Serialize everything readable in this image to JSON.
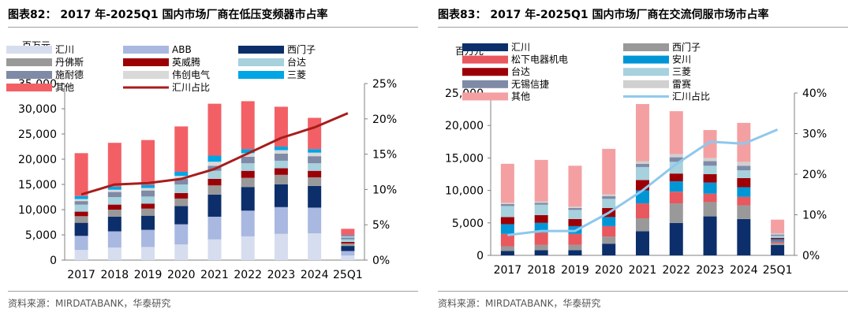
{
  "charts": [
    {
      "title": "图表82： 2017 年-2025Q1 国内市场厂商在低压变频器市占率",
      "source": "资料来源：MIRDATABANK，华泰研究",
      "unit_label": "百万元",
      "chart_data": {
        "type": "bar",
        "stacked": true,
        "categories": [
          "2017",
          "2018",
          "2019",
          "2020",
          "2021",
          "2022",
          "2023",
          "2024",
          "25Q1"
        ],
        "ylim": [
          0,
          35000
        ],
        "y_ticks": [
          "0",
          "5,000",
          "10,000",
          "15,000",
          "20,000",
          "25,000",
          "30,000",
          "35,000"
        ],
        "y2lim": [
          0,
          0.25
        ],
        "y2_ticks": [
          "0%",
          "5%",
          "10%",
          "15%",
          "20%",
          "25%"
        ],
        "legend_position": "top-left",
        "grid": false,
        "series": [
          {
            "name": "汇川",
            "color": "#d6ddef",
            "values": [
              2000,
              2500,
              2600,
              3100,
              4100,
              4700,
              5200,
              5300,
              900
            ]
          },
          {
            "name": "ABB",
            "color": "#a9b8e0",
            "values": [
              2800,
              3200,
              3400,
              4000,
              4500,
              5100,
              5300,
              5100,
              900
            ]
          },
          {
            "name": "西门子",
            "color": "#0c2f6b",
            "values": [
              2600,
              2900,
              2800,
              3600,
              4400,
              4700,
              4500,
              4300,
              1000
            ]
          },
          {
            "name": "丹佛斯",
            "color": "#999999",
            "values": [
              1300,
              1400,
              1400,
              1500,
              1800,
              1800,
              1900,
              1700,
              500
            ]
          },
          {
            "name": "英威腾",
            "color": "#9c0006",
            "values": [
              900,
              1000,
              1000,
              1100,
              1300,
              1400,
              1300,
              1300,
              300
            ]
          },
          {
            "name": "台达",
            "color": "#a6d1dd",
            "values": [
              1400,
              1500,
              1400,
              1700,
              1600,
              1500,
              1500,
              1500,
              500
            ]
          },
          {
            "name": "施耐德",
            "color": "#7f8aa6",
            "values": [
              700,
              1000,
              1200,
              1100,
              1000,
              1300,
              1400,
              1400,
              400
            ]
          },
          {
            "name": "伟创电气",
            "color": "#d9d9d9",
            "values": [
              400,
              450,
              500,
              600,
              800,
              700,
              700,
              700,
              200
            ]
          },
          {
            "name": "三菱",
            "color": "#00a5e5",
            "values": [
              600,
              600,
              600,
              800,
              1200,
              800,
              700,
              700,
              200
            ]
          },
          {
            "name": "其他",
            "color": "#f26066",
            "values": [
              8500,
              8700,
              8900,
              9000,
              10300,
              9500,
              7900,
              6200,
              1300
            ]
          }
        ],
        "line": {
          "name": "汇川占比",
          "color": "#a81c1c",
          "values": [
            0.093,
            0.107,
            0.109,
            0.115,
            0.129,
            0.151,
            0.173,
            0.188,
            0.208
          ]
        }
      }
    },
    {
      "title": "图表83： 2017 年-2025Q1 国内市场厂商在交流伺服市场市占率",
      "source": "资料来源：MIRDATABANK，华泰研究",
      "unit_label": "百万元",
      "chart_data": {
        "type": "bar",
        "stacked": true,
        "categories": [
          "2017",
          "2018",
          "2019",
          "2020",
          "2021",
          "2022",
          "2023",
          "2024",
          "25Q1"
        ],
        "ylim": [
          0,
          25000
        ],
        "y_ticks": [
          "0",
          "5,000",
          "10,000",
          "15,000",
          "20,000",
          "25,000"
        ],
        "y2lim": [
          0,
          0.4
        ],
        "y2_ticks": [
          "0%",
          "10%",
          "20%",
          "30%",
          "40%"
        ],
        "legend_position": "top-left",
        "grid": false,
        "series": [
          {
            "name": "汇川",
            "color": "#0c2f6b",
            "values": [
              700,
              800,
              800,
              1800,
              3700,
              5000,
              6000,
              5600,
              1600
            ]
          },
          {
            "name": "西门子",
            "color": "#999999",
            "values": [
              700,
              800,
              800,
              1100,
              2000,
              3000,
              2200,
              2100,
              300
            ]
          },
          {
            "name": "松下电器机电",
            "color": "#e8585e",
            "values": [
              1900,
              1900,
              1700,
              1600,
              2300,
              1800,
              1300,
              1300,
              300
            ]
          },
          {
            "name": "安川",
            "color": "#0096d6",
            "values": [
              1500,
              1500,
              1200,
              1400,
              2000,
              1600,
              1700,
              1500,
              300
            ]
          },
          {
            "name": "台达",
            "color": "#9c0006",
            "values": [
              1100,
              1200,
              1100,
              1400,
              1600,
              1200,
              1300,
              1400,
              200
            ]
          },
          {
            "name": "三菱",
            "color": "#a6d1dd",
            "values": [
              1700,
              1600,
              1400,
              1400,
              2000,
              1800,
              1300,
              1200,
              300
            ]
          },
          {
            "name": "无锡信捷",
            "color": "#7f8aa6",
            "values": [
              300,
              300,
              300,
              400,
              500,
              700,
              700,
              700,
              200
            ]
          },
          {
            "name": "雷赛",
            "color": "#d0d0d0",
            "values": [
              200,
              200,
              200,
              300,
              400,
              500,
              500,
              600,
              200
            ]
          },
          {
            "name": "其他",
            "color": "#f4a0a3",
            "values": [
              6000,
              6400,
              6300,
              7000,
              8800,
              6600,
              4300,
              6000,
              2100
            ]
          }
        ],
        "line": {
          "name": "汇川占比",
          "color": "#8ec8ec",
          "values": [
            0.05,
            0.06,
            0.06,
            0.105,
            0.16,
            0.225,
            0.28,
            0.275,
            0.31
          ]
        }
      }
    }
  ]
}
